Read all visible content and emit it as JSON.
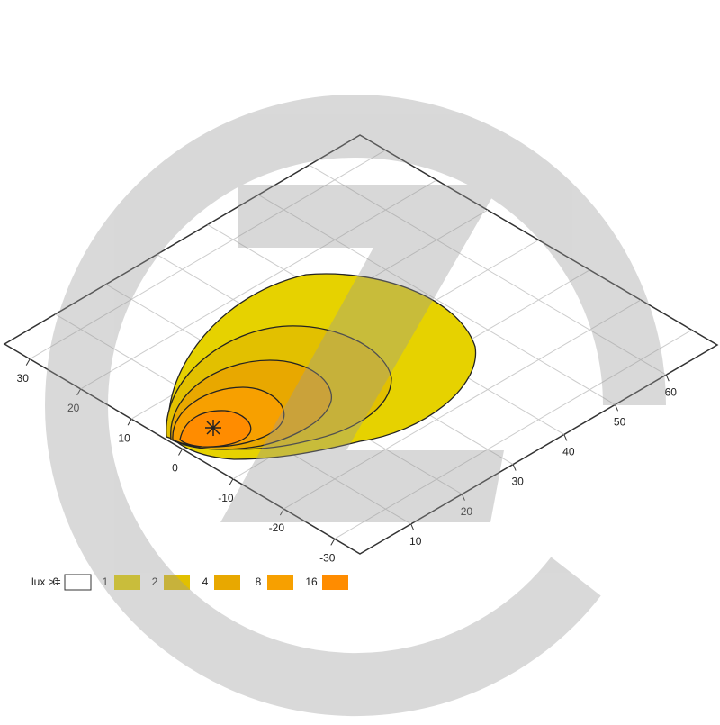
{
  "chart_data": {
    "type": "isolux",
    "legend_title": "lux >=",
    "levels": [
      {
        "value": 0,
        "color": "#ffffff"
      },
      {
        "value": 1,
        "color": "#e6d200"
      },
      {
        "value": 2,
        "color": "#e2c000"
      },
      {
        "value": 4,
        "color": "#e8a800"
      },
      {
        "value": 8,
        "color": "#f7a000"
      },
      {
        "value": 16,
        "color": "#ff8c00"
      }
    ],
    "xlim": [
      0,
      70
    ],
    "xticks": [
      10,
      20,
      30,
      40,
      50,
      60
    ],
    "ylim": [
      -35,
      35
    ],
    "yticks": [
      30,
      20,
      10,
      0,
      -10,
      -20,
      -30
    ],
    "grid": true
  }
}
